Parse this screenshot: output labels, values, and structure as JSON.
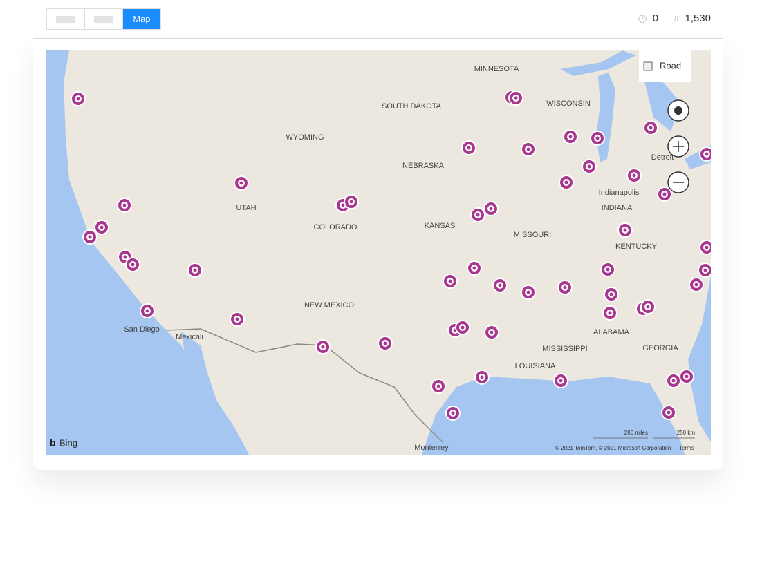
{
  "toolbar": {
    "active_tab": "Map",
    "stats": {
      "time": "0",
      "count": "1,530"
    }
  },
  "map": {
    "style_button": "Road",
    "labels": [
      "MINNESOTA",
      "SOUTH DAKOTA",
      "WISCONSIN",
      "WYOMING",
      "NEBRASKA",
      "Detroit",
      "Indianapolis",
      "INDIANA",
      "UTAH",
      "COLORADO",
      "KANSAS",
      "MISSOURI",
      "KENTUCKY",
      "NEW MEXICO",
      "ALABAMA",
      "MISSISSIPPI",
      "GEORGIA",
      "LOUISIANA",
      "San Diego",
      "Mexicali",
      "Monterrey"
    ],
    "brand": "Bing",
    "scale": {
      "miles": "200 miles",
      "km": "250 km"
    },
    "attribution": "© 2021 TomTom, © 2021 Microsoft Corporation",
    "terms": "Terms"
  }
}
